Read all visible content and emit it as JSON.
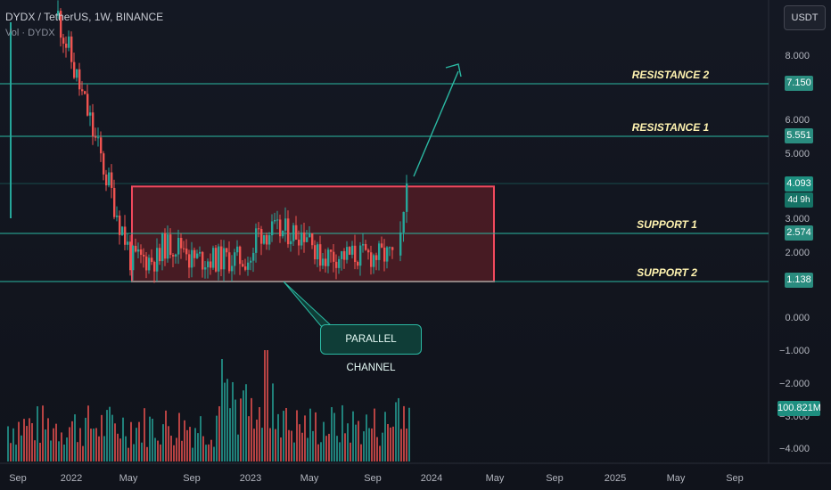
{
  "header": {
    "symbol_line": "DYDX / TetherUS, 1W, BINANCE",
    "indicator_line": "Vol · DYDX"
  },
  "currency_button": "USDT",
  "y_axis": {
    "ticks": [
      {
        "label": "8.000",
        "value": 8
      },
      {
        "label": "6.000",
        "value": 6
      },
      {
        "label": "5.000",
        "value": 5
      },
      {
        "label": "3.000",
        "value": 3
      },
      {
        "label": "2.000",
        "value": 2
      },
      {
        "label": "0.000",
        "value": 0
      },
      {
        "label": "−1.000",
        "value": -1
      },
      {
        "label": "−2.000",
        "value": -2
      },
      {
        "label": "−3.000",
        "value": -3
      },
      {
        "label": "−4.000",
        "value": -4
      }
    ]
  },
  "x_axis": {
    "ticks": [
      "Sep",
      "2022",
      "May",
      "Sep",
      "2023",
      "May",
      "Sep",
      "2024",
      "May",
      "Sep",
      "2025",
      "May",
      "Sep"
    ]
  },
  "price_tags": {
    "resistance_2": "7.150",
    "resistance_1": "5.551",
    "current_price": "4.093",
    "countdown": "4d 9h",
    "support_1": "2.574",
    "support_2": "1.138",
    "volume": "100.821M"
  },
  "levels": [
    {
      "label": "RESISTANCE 2",
      "value": 7.15
    },
    {
      "label": "RESISTANCE 1",
      "value": 5.551
    },
    {
      "label": "SUPPORT 1",
      "value": 2.574
    },
    {
      "label": "SUPPORT 2",
      "value": 1.138
    }
  ],
  "annotation": {
    "callout_text": "PARALLEL CHANNEL",
    "channel_top": 4.0,
    "channel_bottom": 1.138,
    "channel_mid": 2.574
  },
  "colors": {
    "background": "#131722",
    "up": "#26a69a",
    "down": "#ef5350",
    "level_line": "#2bb9a3",
    "channel_border": "#f2495d",
    "channel_fill": "#5a1e26",
    "level_text": "#fff3b0"
  },
  "chart_data": {
    "type": "candlestick",
    "title": "DYDX / TetherUS, 1W, BINANCE",
    "ylim": [
      -4.4,
      9.3
    ],
    "ohlc_approx": [
      [
        9.3,
        9.0,
        4.3,
        4.9
      ],
      [
        4.9,
        5.3,
        4.1,
        4.4
      ],
      [
        4.4,
        4.6,
        2.9,
        3.1
      ],
      [
        3.1,
        3.4,
        2.6,
        2.8
      ],
      [
        2.8,
        3.0,
        1.2,
        1.4
      ],
      [
        1.4,
        2.6,
        1.2,
        2.3
      ],
      [
        2.3,
        2.7,
        1.3,
        1.5
      ],
      [
        1.5,
        2.0,
        1.1,
        1.3
      ],
      [
        1.3,
        2.1,
        1.2,
        1.9
      ],
      [
        1.9,
        2.6,
        1.4,
        1.5
      ],
      [
        1.5,
        3.6,
        1.4,
        3.1
      ],
      [
        3.1,
        3.4,
        2.2,
        2.5
      ],
      [
        2.5,
        2.8,
        1.5,
        1.8
      ],
      [
        1.8,
        2.3,
        1.6,
        2.1
      ],
      [
        2.1,
        2.2,
        1.6,
        1.8
      ],
      [
        1.8,
        2.0,
        1.7,
        1.9
      ],
      [
        1.9,
        2.0,
        1.7,
        1.8
      ],
      [
        1.8,
        2.1,
        1.6,
        1.9
      ],
      [
        1.9,
        3.1,
        1.8,
        2.9
      ],
      [
        2.9,
        4.3,
        2.6,
        4.09
      ]
    ],
    "volume_label": "100.821M"
  }
}
